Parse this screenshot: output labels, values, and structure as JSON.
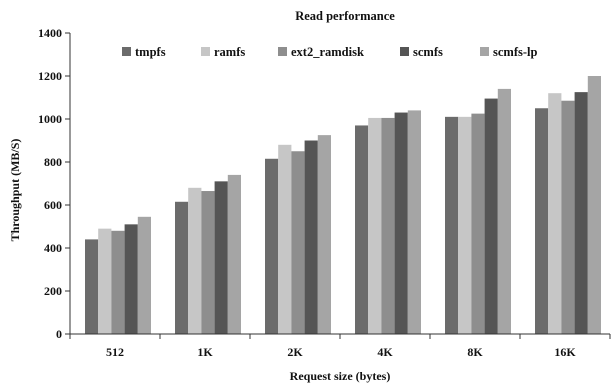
{
  "chart_data": {
    "type": "bar",
    "title": "Read performance",
    "xlabel": "Request size (bytes)",
    "ylabel": "Throughput (MB/S)",
    "ylim": [
      0,
      1400
    ],
    "yticks": [
      0,
      200,
      400,
      600,
      800,
      1000,
      1200,
      1400
    ],
    "grid": false,
    "legend_position": "top",
    "categories": [
      "512",
      "1K",
      "2K",
      "4K",
      "8K",
      "16K"
    ],
    "series": [
      {
        "name": "tmpfs",
        "color": "#6b6b6b",
        "values": [
          440,
          615,
          815,
          970,
          1010,
          1050
        ]
      },
      {
        "name": "ramfs",
        "color": "#c6c6c6",
        "values": [
          490,
          680,
          880,
          1005,
          1010,
          1120
        ]
      },
      {
        "name": "ext2_ramdisk",
        "color": "#8e8e8e",
        "values": [
          480,
          665,
          850,
          1005,
          1025,
          1085
        ]
      },
      {
        "name": "scmfs",
        "color": "#555555",
        "values": [
          510,
          710,
          900,
          1030,
          1095,
          1125
        ]
      },
      {
        "name": "scmfs-lp",
        "color": "#a5a5a5",
        "values": [
          545,
          740,
          925,
          1040,
          1140,
          1200
        ]
      }
    ]
  }
}
